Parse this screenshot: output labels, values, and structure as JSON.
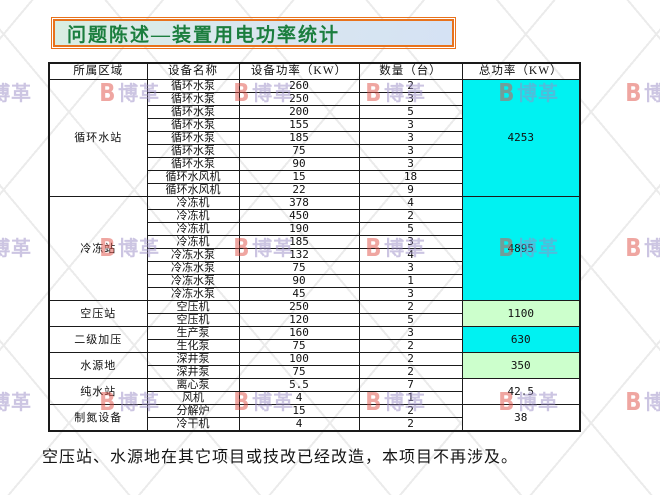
{
  "title": "问题陈述—装置用电功率统计",
  "note": "空压站、水源地在其它项目或技改已经改造，本项目不再涉及。",
  "watermark": {
    "logo": "B",
    "text": "博革"
  },
  "colors": {
    "cyan": "#00f2f2",
    "green": "#ccffcc",
    "white": "#ffffff",
    "title_text": "#1b7e3e",
    "title_border": "#e8721c"
  },
  "table": {
    "headers": [
      "所属区域",
      "设备名称",
      "设备功率（KW）",
      "数量（台）",
      "总功率（KW）"
    ],
    "groups": [
      {
        "area": "循环水站",
        "total": "4253",
        "total_color": "cyan",
        "rows": [
          {
            "name": "循环水泵",
            "power": "260",
            "qty": "2"
          },
          {
            "name": "循环水泵",
            "power": "250",
            "qty": "3"
          },
          {
            "name": "循环水泵",
            "power": "200",
            "qty": "5"
          },
          {
            "name": "循环水泵",
            "power": "155",
            "qty": "3"
          },
          {
            "name": "循环水泵",
            "power": "185",
            "qty": "3"
          },
          {
            "name": "循环水泵",
            "power": "75",
            "qty": "3"
          },
          {
            "name": "循环水泵",
            "power": "90",
            "qty": "3"
          },
          {
            "name": "循环水风机",
            "power": "15",
            "qty": "18"
          },
          {
            "name": "循环水风机",
            "power": "22",
            "qty": "9"
          }
        ]
      },
      {
        "area": "冷冻站",
        "total": "4895",
        "total_color": "cyan",
        "rows": [
          {
            "name": "冷冻机",
            "power": "378",
            "qty": "4"
          },
          {
            "name": "冷冻机",
            "power": "450",
            "qty": "2"
          },
          {
            "name": "冷冻机",
            "power": "190",
            "qty": "5"
          },
          {
            "name": "冷冻机",
            "power": "185",
            "qty": "3"
          },
          {
            "name": "冷冻水泵",
            "power": "132",
            "qty": "4"
          },
          {
            "name": "冷冻水泵",
            "power": "75",
            "qty": "3"
          },
          {
            "name": "冷冻水泵",
            "power": "90",
            "qty": "1"
          },
          {
            "name": "冷冻水泵",
            "power": "45",
            "qty": "3"
          }
        ]
      },
      {
        "area": "空压站",
        "total": "1100",
        "total_color": "green",
        "rows": [
          {
            "name": "空压机",
            "power": "250",
            "qty": "2"
          },
          {
            "name": "空压机",
            "power": "120",
            "qty": "5"
          }
        ]
      },
      {
        "area": "二级加压",
        "total": "630",
        "total_color": "cyan",
        "rows": [
          {
            "name": "生产泵",
            "power": "160",
            "qty": "3"
          },
          {
            "name": "生化泵",
            "power": "75",
            "qty": "2"
          }
        ]
      },
      {
        "area": "水源地",
        "total": "350",
        "total_color": "green",
        "rows": [
          {
            "name": "深井泵",
            "power": "100",
            "qty": "2"
          },
          {
            "name": "深井泵",
            "power": "75",
            "qty": "2"
          }
        ]
      },
      {
        "area": "纯水站",
        "total": "42.5",
        "total_color": "white",
        "rows": [
          {
            "name": "离心泵",
            "power": "5.5",
            "qty": "7"
          },
          {
            "name": "风机",
            "power": "4",
            "qty": "1"
          }
        ]
      },
      {
        "area": "制氮设备",
        "total": "38",
        "total_color": "white",
        "rows": [
          {
            "name": "分解炉",
            "power": "15",
            "qty": "2"
          },
          {
            "name": "冷干机",
            "power": "4",
            "qty": "2"
          }
        ]
      }
    ]
  }
}
